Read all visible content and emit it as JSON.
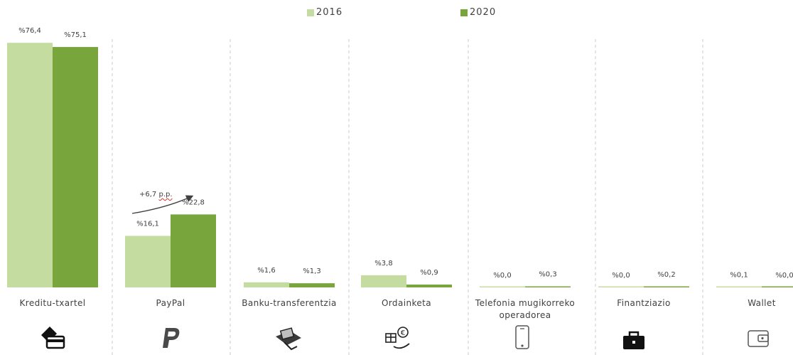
{
  "colors": {
    "y2016": "#c4dc9f",
    "y2020": "#78a53c",
    "divider": "#c8c8c8",
    "text": "#404040",
    "baseline": "#e9e9e9"
  },
  "legend": [
    {
      "label": "2016",
      "color": "#c4dc9f"
    },
    {
      "label": "2020",
      "color": "#78a53c"
    }
  ],
  "annotation": {
    "prefix": "+6,7 ",
    "squiggle": "p.p."
  },
  "chart_data": {
    "type": "bar",
    "title": "",
    "xlabel": "",
    "ylabel": "",
    "ylim": [
      0,
      80
    ],
    "grid": false,
    "legend_position": "top-center",
    "categories": [
      "Kreditu-txartel",
      "PayPal",
      "Banku-transferentzia",
      "Ordainketa",
      "Telefonia mugikorreko operadorea",
      "Finantziazio",
      "Wallet"
    ],
    "category_icons": [
      "credit-card-icon",
      "paypal-icon",
      "bank-transfer-icon",
      "payment-gift-icon",
      "mobile-phone-icon",
      "briefcase-icon",
      "wallet-icon"
    ],
    "series": [
      {
        "name": "2016",
        "values": [
          76.4,
          16.1,
          1.6,
          3.8,
          0.0,
          0.0,
          0.1
        ],
        "labels": [
          "%76,4",
          "%16,1",
          "%1,6",
          "%3,8",
          "%0,0",
          "%0,0",
          "%0,1"
        ]
      },
      {
        "name": "2020",
        "values": [
          75.1,
          22.8,
          1.3,
          0.9,
          0.3,
          0.2,
          0.0
        ],
        "labels": [
          "%75,1",
          "%22,8",
          "%1,3",
          "%0,9",
          "%0,3",
          "%0,2",
          "%0,0"
        ]
      }
    ]
  }
}
